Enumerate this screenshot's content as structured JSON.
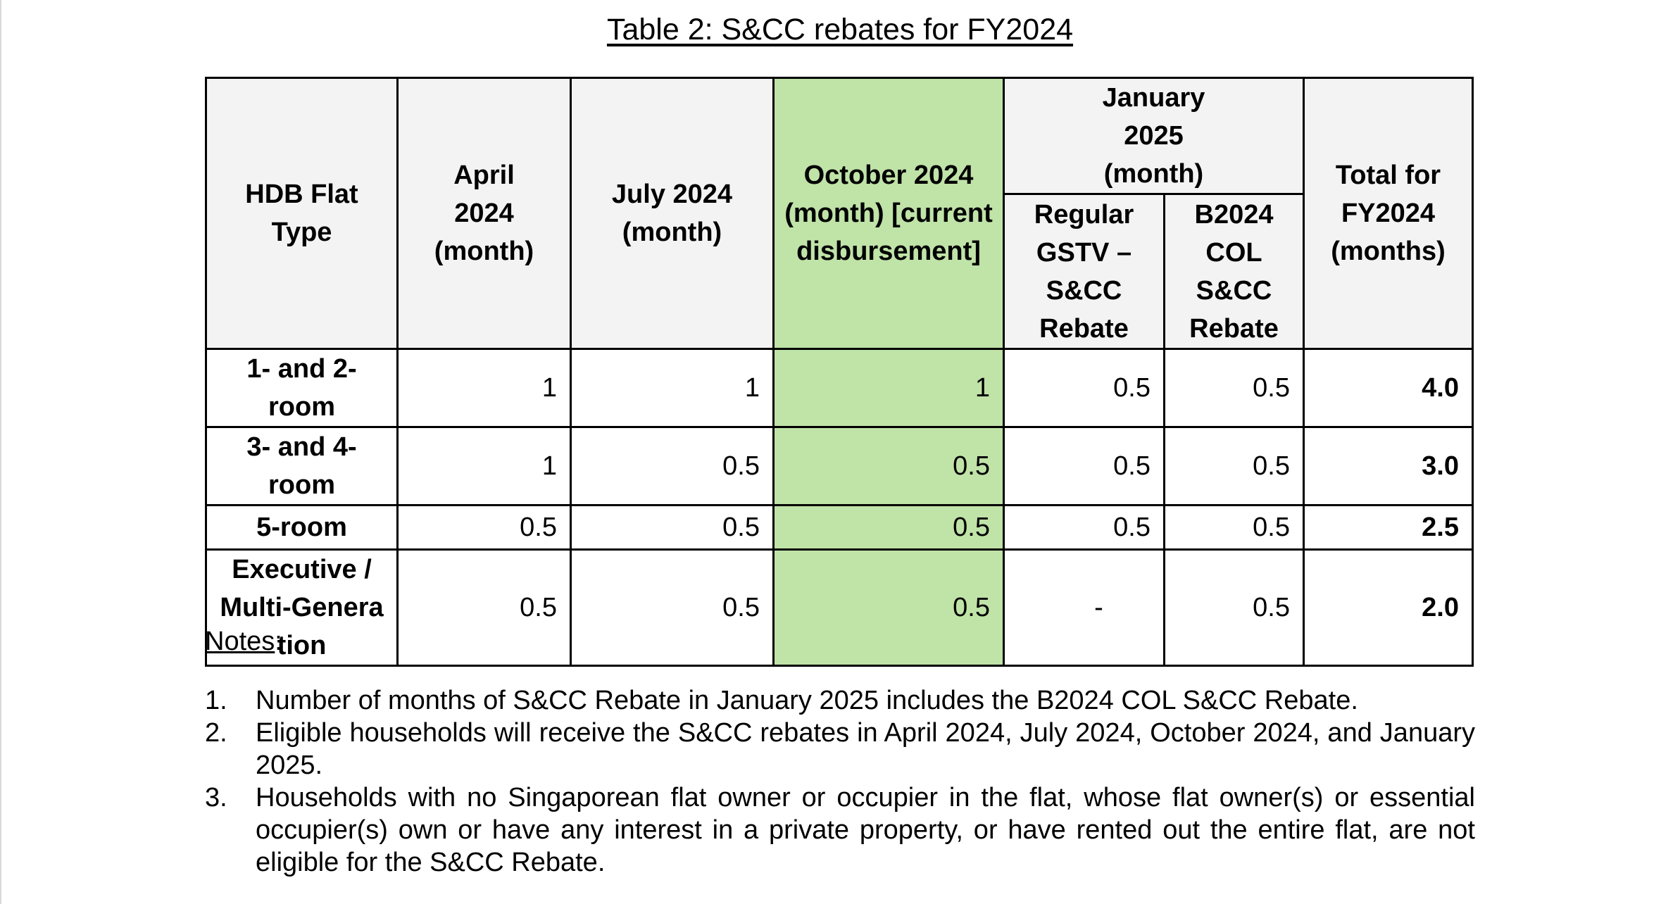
{
  "title": "Table 2: S&CC rebates for FY2024",
  "table": {
    "headers": {
      "flat_type": "HDB Flat Type",
      "apr": "April 2024 (month)",
      "jul": "July 2024 (month)",
      "oct": "October 2024 (month) [current disbursement]",
      "jan_group": "January 2025 (month)",
      "jan_regular": "Regular GSTV – S&CC Rebate",
      "jan_col": "B2024 COL S&CC Rebate",
      "total": "Total for FY2024 (months)"
    },
    "rows": [
      {
        "type": "1- and 2-room",
        "apr": "1",
        "jul": "1",
        "oct": "1",
        "jan_regular": "0.5",
        "jan_col": "0.5",
        "total": "4.0"
      },
      {
        "type": "3- and 4-room",
        "apr": "1",
        "jul": "0.5",
        "oct": "0.5",
        "jan_regular": "0.5",
        "jan_col": "0.5",
        "total": "3.0"
      },
      {
        "type": "5-room",
        "apr": "0.5",
        "jul": "0.5",
        "oct": "0.5",
        "jan_regular": "0.5",
        "jan_col": "0.5",
        "total": "2.5"
      },
      {
        "type": "Executive / Multi-Generation",
        "apr": "0.5",
        "jul": "0.5",
        "oct": "0.5",
        "jan_regular": "-",
        "jan_col": "0.5",
        "total": "2.0"
      }
    ],
    "highlight_color": "#c0e3a8",
    "header_bg": "#f3f3f3"
  },
  "notes": {
    "heading": "Notes",
    "heading_suffix": ":",
    "items": [
      {
        "num": "1.",
        "text": "Number of months of S&CC Rebate in January 2025 includes the B2024 COL S&CC Rebate."
      },
      {
        "num": "2.",
        "text": "Eligible households will receive the S&CC rebates in April 2024, July 2024, October 2024, and January 2025."
      },
      {
        "num": "3.",
        "text": "Households with no Singaporean flat owner or occupier in the flat, whose flat owner(s) or essential occupier(s) own or have any interest in a private property, or have rented out the entire flat, are not eligible for the S&CC Rebate."
      }
    ]
  }
}
